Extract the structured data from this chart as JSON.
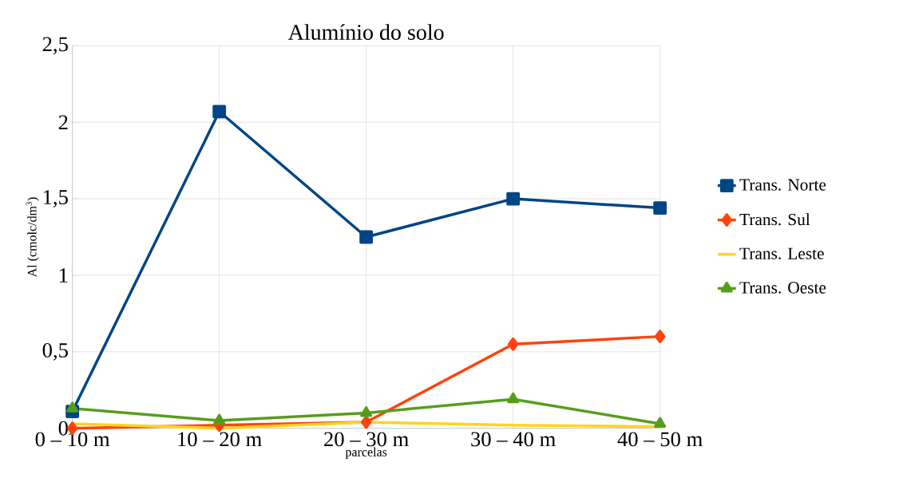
{
  "chart_data": {
    "type": "line",
    "title": "Alumínio do solo",
    "xlabel": "parcelas",
    "ylabel": "Al (cmolc/dm$^{3}$)",
    "categories": [
      "0 – 10 m",
      "10 – 20 m",
      "20 – 30 m",
      "30 – 40 m",
      "40 – 50 m"
    ],
    "series": [
      {
        "name": "Trans. Norte",
        "color": "#004586",
        "marker": "square",
        "values": [
          0.11,
          2.07,
          1.25,
          1.5,
          1.44
        ]
      },
      {
        "name": "Trans. Sul",
        "color": "#ff420e",
        "marker": "diamond",
        "values": [
          0,
          0.02,
          0.04,
          0.55,
          0.6
        ]
      },
      {
        "name": "Trans. Leste",
        "color": "#ffd320",
        "marker": "none",
        "values": [
          0.03,
          0.0,
          0.04,
          0.02,
          0.01
        ]
      },
      {
        "name": "Trans. Oeste",
        "color": "#579d1c",
        "marker": "triangle",
        "values": [
          0.13,
          0.05,
          0.1,
          0.19,
          0.03
        ]
      }
    ],
    "ylim": [
      0,
      2.5
    ],
    "yticks": [
      0,
      {
        "value": 0.5,
        "label": "0,5"
      },
      1,
      {
        "value": 1.5,
        "label": "1,5"
      },
      2,
      {
        "value": 2.5,
        "label": "2,5"
      }
    ],
    "grid": true,
    "legend": "right"
  }
}
